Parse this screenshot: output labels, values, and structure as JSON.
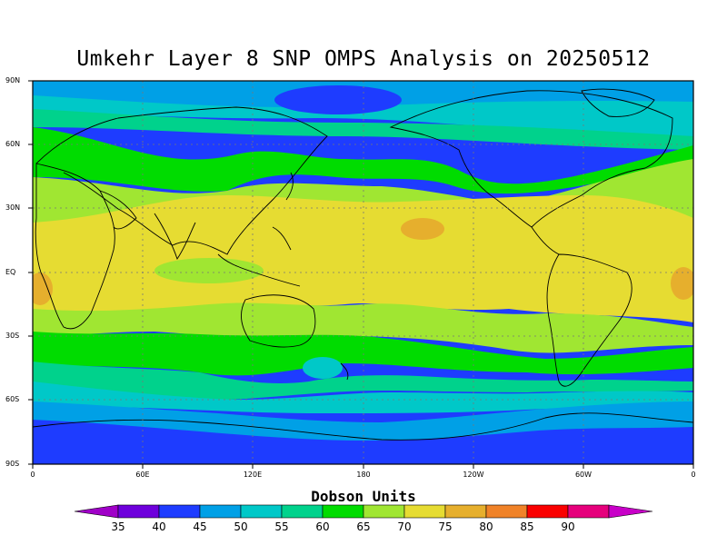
{
  "title": "Umkehr Layer 8 SNP OMPS Analysis on 20250512",
  "lat_labels": [
    "90N",
    "60N",
    "30N",
    "EQ",
    "30S",
    "60S",
    "90S"
  ],
  "lon_labels": [
    "0",
    "60E",
    "120E",
    "180",
    "120W",
    "60W",
    "0"
  ],
  "colorbar": {
    "title": "Dobson Units",
    "labels": [
      "35",
      "40",
      "45",
      "50",
      "55",
      "60",
      "65",
      "70",
      "75",
      "80",
      "85",
      "90"
    ],
    "colors": [
      "#a000c8",
      "#6e00dc",
      "#1e3cff",
      "#00a0e6",
      "#00c8c8",
      "#00d28c",
      "#00dc00",
      "#a0e632",
      "#e6dc32",
      "#e6af2d",
      "#f08228",
      "#fa0000",
      "#e6007c",
      "#c800c8"
    ]
  },
  "legend_icons": {
    "left_arrow": "left-triangle-icon",
    "right_arrow": "right-triangle-icon"
  }
}
